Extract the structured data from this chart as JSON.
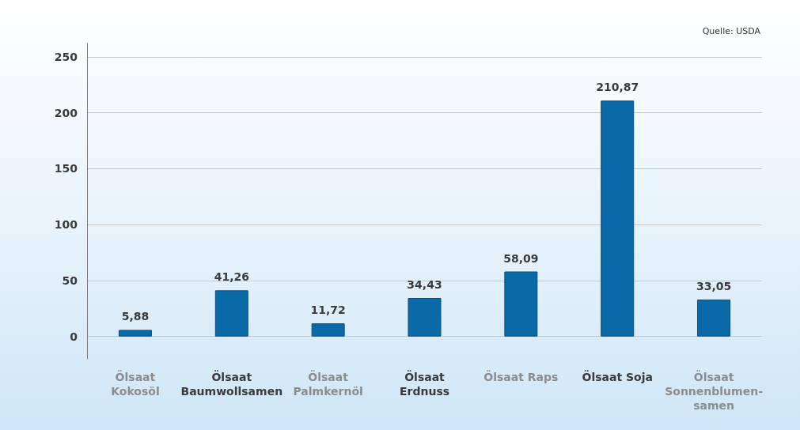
{
  "chart_data": {
    "type": "bar",
    "categories": [
      "Ölsaat\nKokosöl",
      "Ölsaat\nBaumwollsamen",
      "Ölsaat\nPalmkernöl",
      "Ölsaat\nErdnuss",
      "Ölsaat Raps",
      "Ölsaat Soja",
      "Ölsaat\nSonnenblumen-\nsamen"
    ],
    "values": [
      5.88,
      41.26,
      11.72,
      34.43,
      58.09,
      210.87,
      33.05
    ],
    "value_labels": [
      "5,88",
      "41,26",
      "11,72",
      "34,43",
      "58,09",
      "210,87",
      "33,05"
    ],
    "color": "#0a6aa8",
    "ylim": [
      -20,
      262
    ],
    "yticks": [
      0,
      50,
      100,
      150,
      200,
      250
    ],
    "grid": "y",
    "annotations": [
      "Quelle: USDA"
    ]
  }
}
